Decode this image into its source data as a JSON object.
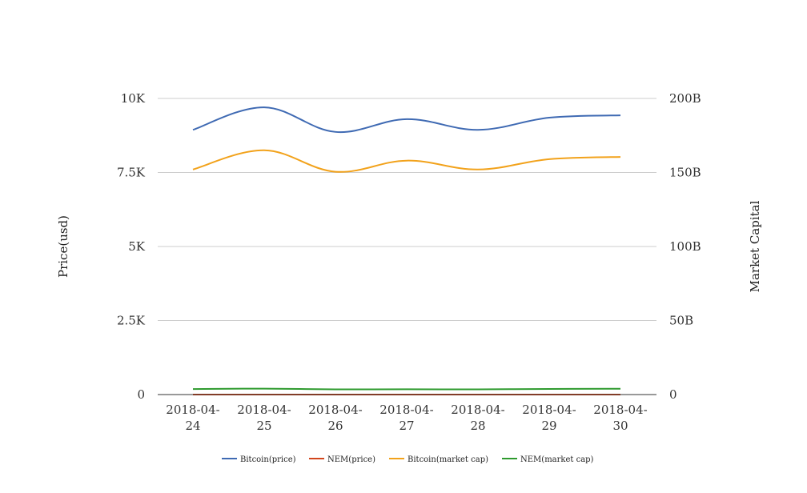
{
  "chart_data": {
    "type": "line",
    "categories": [
      [
        "2018-04-",
        "24"
      ],
      [
        "2018-04-",
        "25"
      ],
      [
        "2018-04-",
        "26"
      ],
      [
        "2018-04-",
        "27"
      ],
      [
        "2018-04-",
        "28"
      ],
      [
        "2018-04-",
        "29"
      ],
      [
        "2018-04-",
        "30"
      ]
    ],
    "left_axis": {
      "label": "Price(usd)",
      "range": [
        0,
        10000
      ],
      "ticks": [
        0,
        2500,
        5000,
        7500,
        10000
      ],
      "tick_labels": [
        "0",
        "2.5K",
        "5K",
        "7.5K",
        "10K"
      ]
    },
    "right_axis": {
      "label": "Market Capital",
      "range": [
        0,
        200000000000
      ],
      "ticks": [
        0,
        50000000000,
        100000000000,
        150000000000,
        200000000000
      ],
      "tick_labels": [
        "0",
        "50B",
        "100B",
        "150B",
        "200B"
      ]
    },
    "grid": true,
    "legend_position": "bottom",
    "series": [
      {
        "name": "Bitcoin(price)",
        "axis": "left",
        "color": "#3f6ab3",
        "values": [
          8940,
          9700,
          8870,
          9300,
          8940,
          9350,
          9430
        ]
      },
      {
        "name": "NEM(price)",
        "axis": "left",
        "color": "#d2461c",
        "values": [
          0.35,
          0.38,
          0.33,
          0.34,
          0.33,
          0.36,
          0.37
        ]
      },
      {
        "name": "Bitcoin(market cap)",
        "axis": "right",
        "color": "#f2a21b",
        "values": [
          152000000000,
          165000000000,
          150500000000,
          158000000000,
          152000000000,
          159000000000,
          160500000000
        ]
      },
      {
        "name": "NEM(market cap)",
        "axis": "right",
        "color": "#2e9a2e",
        "values": [
          3700000000,
          4000000000,
          3500000000,
          3600000000,
          3500000000,
          3800000000,
          3900000000
        ]
      }
    ]
  }
}
